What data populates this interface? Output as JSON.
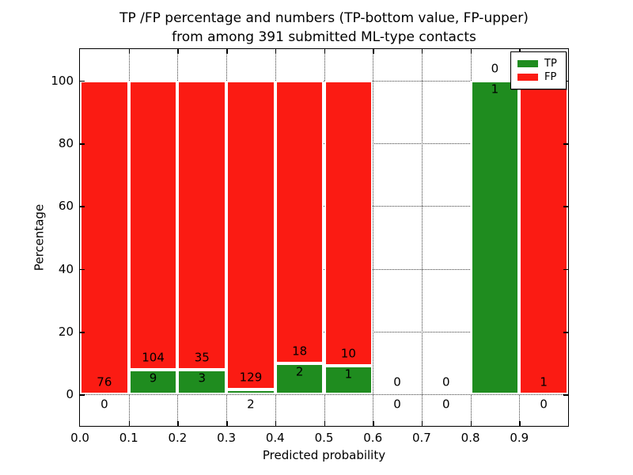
{
  "title": {
    "line1": "TP /FP percentage and numbers (TP-bottom value, FP-upper)",
    "line2": "from among 391 submitted ML-type contacts"
  },
  "chart_data": {
    "type": "bar",
    "stacked": true,
    "total_contacts": 391,
    "xlabel": "Predicted probability",
    "ylabel": "Percentage",
    "xlim": [
      0.0,
      1.0
    ],
    "ylim": [
      -10,
      110
    ],
    "grid": "dotted",
    "x_tick_values": [
      0.0,
      0.1,
      0.2,
      0.3,
      0.4,
      0.5,
      0.6,
      0.7,
      0.8,
      0.9
    ],
    "x_tick_labels": [
      "0.0",
      "0.1",
      "0.2",
      "0.3",
      "0.4",
      "0.5",
      "0.6",
      "0.7",
      "0.8",
      "0.9"
    ],
    "y_tick_values": [
      0,
      20,
      40,
      60,
      80,
      100
    ],
    "y_tick_labels": [
      "0",
      "20",
      "40",
      "60",
      "80",
      "100"
    ],
    "series": [
      {
        "name": "TP",
        "color": "#1f8c1f"
      },
      {
        "name": "FP",
        "color": "#fb1b13"
      }
    ],
    "bins": [
      {
        "range": "0.0-0.1",
        "start": 0.0,
        "end": 0.1,
        "tp_count": 0,
        "fp_count": 76,
        "tp_pct": 0,
        "fp_pct": 100
      },
      {
        "range": "0.1-0.2",
        "start": 0.1,
        "end": 0.2,
        "tp_count": 9,
        "fp_count": 104,
        "tp_pct": 7.96,
        "fp_pct": 92.04
      },
      {
        "range": "0.2-0.3",
        "start": 0.2,
        "end": 0.3,
        "tp_count": 3,
        "fp_count": 35,
        "tp_pct": 7.89,
        "fp_pct": 92.11
      },
      {
        "range": "0.3-0.4",
        "start": 0.3,
        "end": 0.4,
        "tp_count": 2,
        "fp_count": 129,
        "tp_pct": 1.53,
        "fp_pct": 98.47
      },
      {
        "range": "0.4-0.5",
        "start": 0.4,
        "end": 0.5,
        "tp_count": 2,
        "fp_count": 18,
        "tp_pct": 10,
        "fp_pct": 90
      },
      {
        "range": "0.5-0.6",
        "start": 0.5,
        "end": 0.6,
        "tp_count": 1,
        "fp_count": 10,
        "tp_pct": 9.09,
        "fp_pct": 90.91
      },
      {
        "range": "0.6-0.7",
        "start": 0.6,
        "end": 0.7,
        "tp_count": 0,
        "fp_count": 0,
        "tp_pct": 0,
        "fp_pct": 0
      },
      {
        "range": "0.7-0.8",
        "start": 0.7,
        "end": 0.8,
        "tp_count": 0,
        "fp_count": 0,
        "tp_pct": 0,
        "fp_pct": 0
      },
      {
        "range": "0.8-0.9",
        "start": 0.8,
        "end": 0.9,
        "tp_count": 1,
        "fp_count": 0,
        "tp_pct": 100,
        "fp_pct": 0
      },
      {
        "range": "0.9-1.0",
        "start": 0.9,
        "end": 1.0,
        "tp_count": 0,
        "fp_count": 1,
        "tp_pct": 0,
        "fp_pct": 100
      }
    ],
    "legend": {
      "position": "upper right",
      "items": [
        {
          "label": "TP",
          "color": "#1f8c1f"
        },
        {
          "label": "FP",
          "color": "#fb1b13"
        }
      ]
    }
  }
}
